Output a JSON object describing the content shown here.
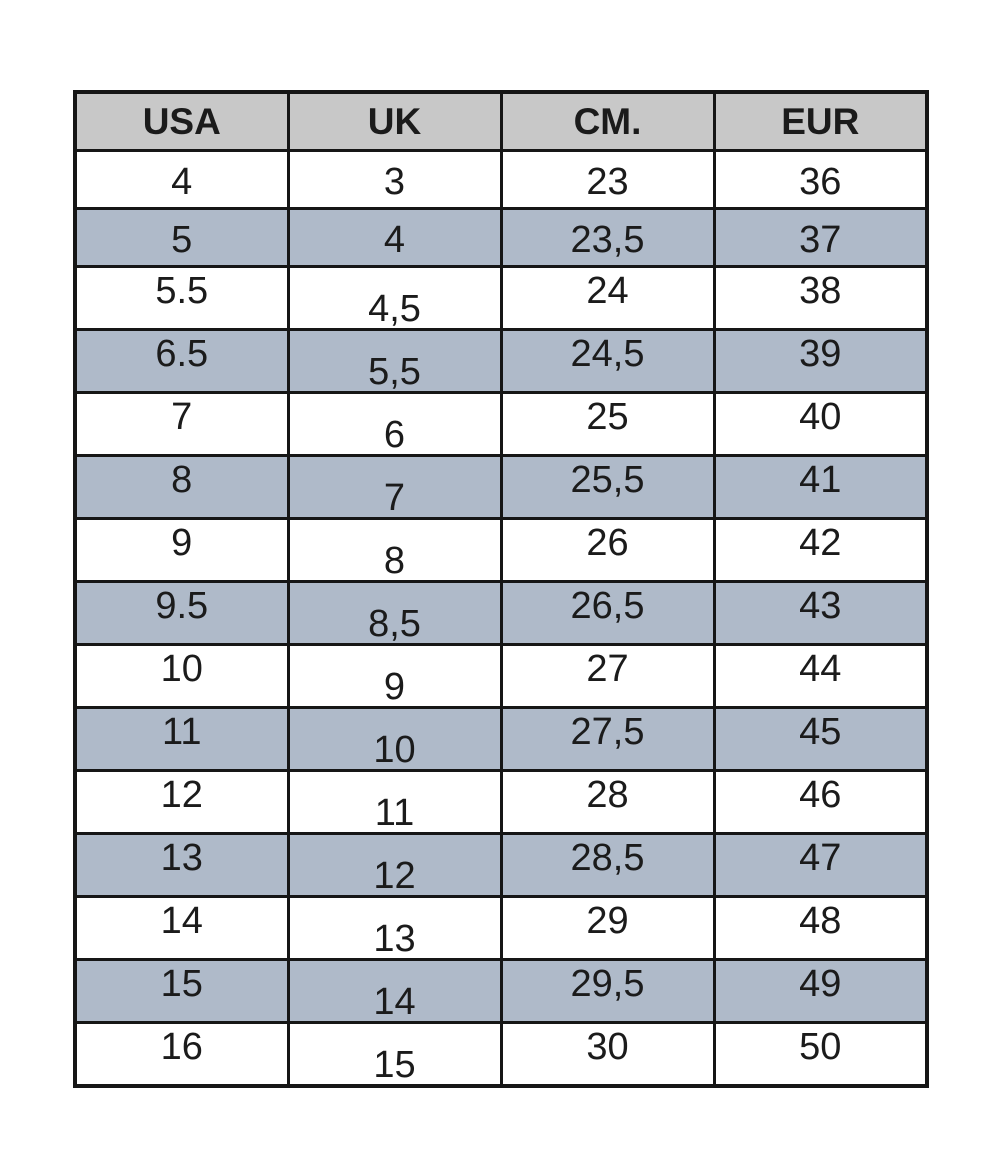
{
  "table": {
    "headers": [
      "USA",
      "UK",
      "CM.",
      "EUR"
    ],
    "rows": [
      [
        "4",
        "3",
        "23",
        "36"
      ],
      [
        "5",
        "4",
        "23,5",
        "37"
      ],
      [
        "5.5",
        "4,5",
        "24",
        "38"
      ],
      [
        "6.5",
        "5,5",
        "24,5",
        "39"
      ],
      [
        "7",
        "6",
        "25",
        "40"
      ],
      [
        "8",
        "7",
        "25,5",
        "41"
      ],
      [
        "9",
        "8",
        "26",
        "42"
      ],
      [
        "9.5",
        "8,5",
        "26,5",
        "43"
      ],
      [
        "10",
        "9",
        "27",
        "44"
      ],
      [
        "11",
        "10",
        "27,5",
        "45"
      ],
      [
        "12",
        "11",
        "28",
        "46"
      ],
      [
        "13",
        "12",
        "28,5",
        "47"
      ],
      [
        "14",
        "13",
        "29",
        "48"
      ],
      [
        "15",
        "14",
        "29,5",
        "49"
      ],
      [
        "16",
        "15",
        "30",
        "50"
      ]
    ]
  },
  "colors": {
    "page_bg": "#ffffff",
    "header_bg": "#c8c8c8",
    "stripe_bg": "#afbac9",
    "row_bg": "#ffffff",
    "border": "#161616",
    "text": "#1b1b1b"
  },
  "chart_data": {
    "type": "table",
    "title": "",
    "columns": [
      "USA",
      "UK",
      "CM.",
      "EUR"
    ],
    "rows": [
      [
        "4",
        "3",
        "23",
        "36"
      ],
      [
        "5",
        "4",
        "23,5",
        "37"
      ],
      [
        "5.5",
        "4,5",
        "24",
        "38"
      ],
      [
        "6.5",
        "5,5",
        "24,5",
        "39"
      ],
      [
        "7",
        "6",
        "25",
        "40"
      ],
      [
        "8",
        "7",
        "25,5",
        "41"
      ],
      [
        "9",
        "8",
        "26",
        "42"
      ],
      [
        "9.5",
        "8,5",
        "26,5",
        "43"
      ],
      [
        "10",
        "9",
        "27",
        "44"
      ],
      [
        "11",
        "10",
        "27,5",
        "45"
      ],
      [
        "12",
        "11",
        "28",
        "46"
      ],
      [
        "13",
        "12",
        "28,5",
        "47"
      ],
      [
        "14",
        "13",
        "29",
        "48"
      ],
      [
        "15",
        "14",
        "29,5",
        "49"
      ],
      [
        "16",
        "15",
        "30",
        "50"
      ]
    ],
    "layout": {
      "header_background": "#c8c8c8",
      "stripe_background": "#afbac9",
      "striped_row_indices": [
        1,
        3,
        5,
        7,
        9,
        11,
        13
      ],
      "grid": true,
      "legend": "none"
    }
  }
}
